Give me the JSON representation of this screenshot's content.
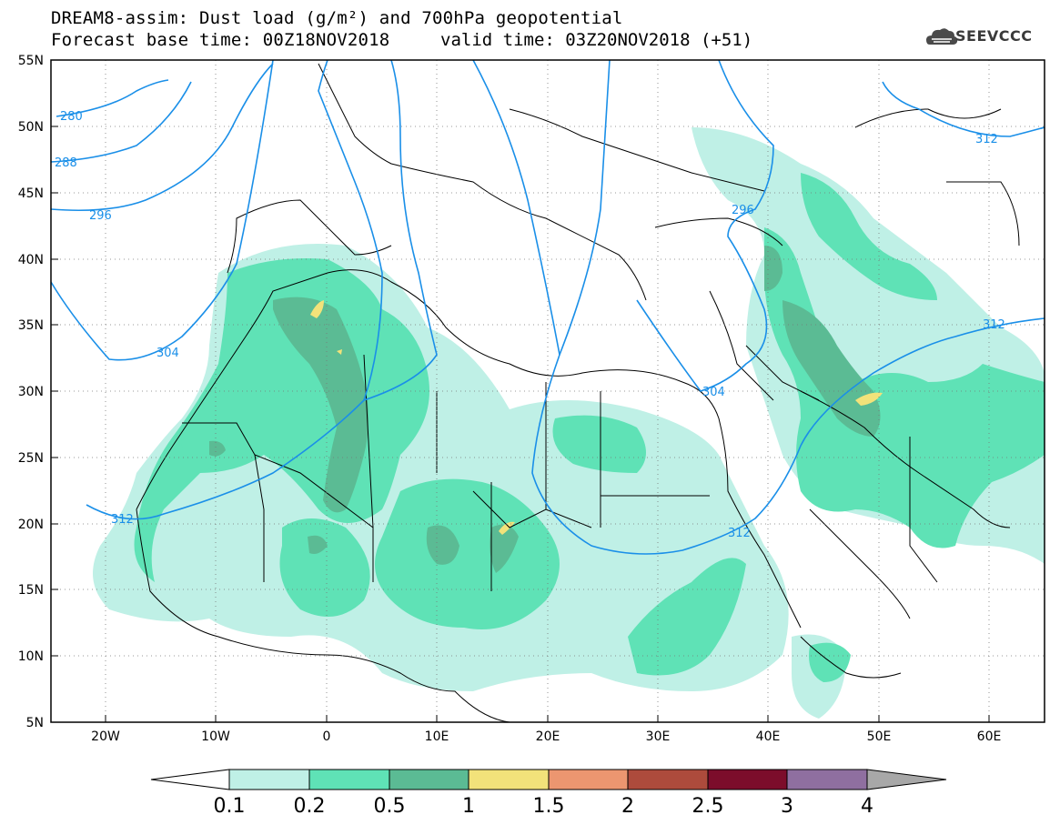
{
  "title": {
    "line1": "DREAM8-assim: Dust load (g/m²) and 700hPa geopotential",
    "line2": "Forecast base time: 00Z18NOV2018",
    "valid": "valid time: 03Z20NOV2018 (+51)"
  },
  "logo": {
    "text": "SEEVCCC",
    "icon": "cloud-icon"
  },
  "map": {
    "lat_labels": [
      "55N",
      "50N",
      "45N",
      "40N",
      "35N",
      "30N",
      "25N",
      "20N",
      "15N",
      "10N",
      "5N"
    ],
    "lon_labels": [
      "20W",
      "10W",
      "0",
      "10E",
      "20E",
      "30E",
      "40E",
      "50E",
      "60E"
    ],
    "contour_labels": [
      "280",
      "288",
      "296",
      "304",
      "312",
      "296",
      "304",
      "312",
      "312",
      "312"
    ],
    "contour_color": "#1a8fe8"
  },
  "colorbar": {
    "colors": [
      "#ffffff",
      "#bff0e6",
      "#5fe2b6",
      "#5bbb94",
      "#f2e27a",
      "#ec9670",
      "#ad4b3c",
      "#7c0d2b",
      "#8f6fa0",
      "#a8a8a8"
    ],
    "labels": [
      "0.1",
      "0.2",
      "0.5",
      "1",
      "1.5",
      "2",
      "2.5",
      "3",
      "4"
    ]
  }
}
